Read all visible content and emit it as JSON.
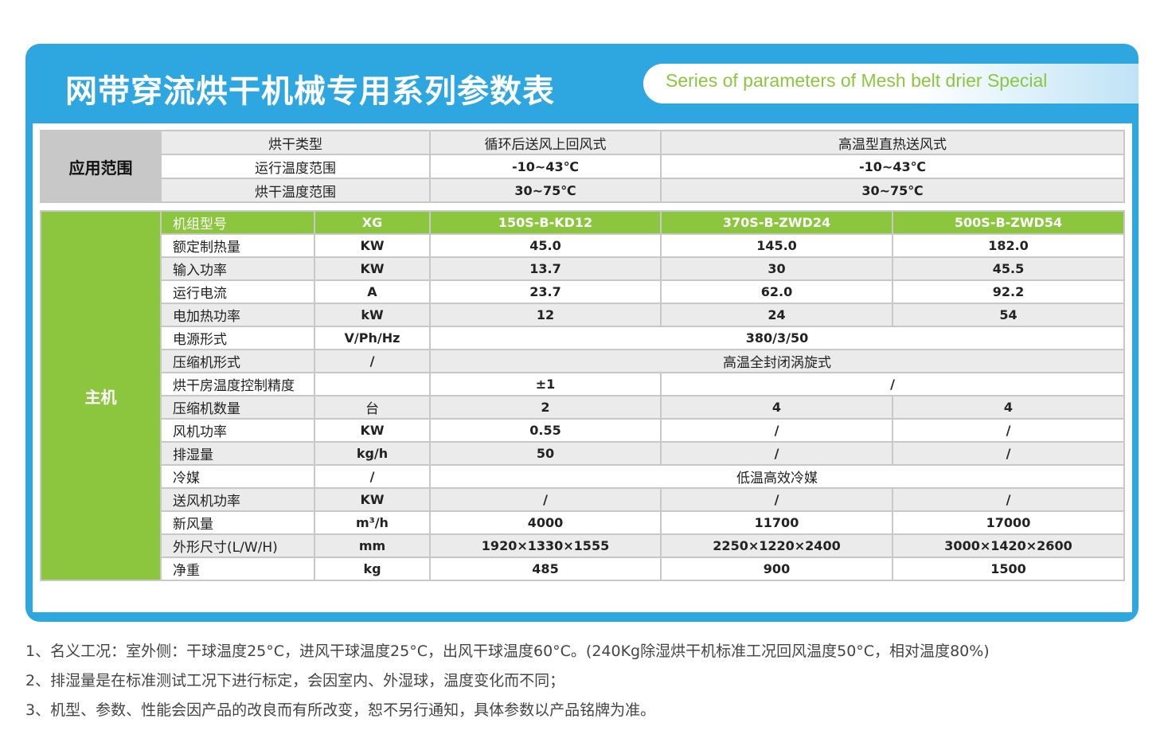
{
  "title_cn": "网带穿流烘干机械专用系列参数表",
  "title_en": "Series of parameters of Mesh belt drier Special",
  "application": {
    "heading": "应用范围",
    "rows": [
      {
        "label": "烘干类型",
        "col1": "循环后送风上回风式",
        "col2": "高温型直热送风式"
      },
      {
        "label": "运行温度范围",
        "col1": "-10~43℃",
        "col2": "-10~43℃"
      },
      {
        "label": "烘干温度范围",
        "col1": "30~75℃",
        "col2": "30~75℃"
      }
    ]
  },
  "main": {
    "heading": "主机",
    "header": {
      "label": "机组型号",
      "unit": "XG",
      "m1": "150S-B-KD12",
      "m2": "370S-B-ZWD24",
      "m3": "500S-B-ZWD54"
    },
    "rows": [
      {
        "label": "额定制热量",
        "unit": "KW",
        "v": [
          "45.0",
          "145.0",
          "182.0"
        ]
      },
      {
        "label": "输入功率",
        "unit": "KW",
        "v": [
          "13.7",
          "30",
          "45.5"
        ]
      },
      {
        "label": "运行电流",
        "unit": "A",
        "v": [
          "23.7",
          "62.0",
          "92.2"
        ]
      },
      {
        "label": "电加热功率",
        "unit": "kW",
        "v": [
          "12",
          "24",
          "54"
        ]
      },
      {
        "label": "电源形式",
        "unit": "V/Ph/Hz",
        "merged": "380/3/50"
      },
      {
        "label": "压缩机形式",
        "unit": "/",
        "merged": "高温全封闭涡旋式"
      },
      {
        "label": "烘干房温度控制精度",
        "unit": "",
        "first": "±1",
        "rest": "/"
      },
      {
        "label": "压缩机数量",
        "unit": "台",
        "v": [
          "2",
          "4",
          "4"
        ]
      },
      {
        "label": "风机功率",
        "unit": "KW",
        "v": [
          "0.55",
          "/",
          "/"
        ]
      },
      {
        "label": "排湿量",
        "unit": "kg/h",
        "v": [
          "50",
          "/",
          "/"
        ]
      },
      {
        "label": "冷媒",
        "unit": "/",
        "merged": "低温高效冷媒"
      },
      {
        "label": "送风机功率",
        "unit": "KW",
        "v": [
          "/",
          "/",
          "/"
        ]
      },
      {
        "label": "新风量",
        "unit": "m³/h",
        "v": [
          "4000",
          "11700",
          "17000"
        ]
      },
      {
        "label": "外形尺寸(L/W/H)",
        "unit": "mm",
        "v": [
          "1920×1330×1555",
          "2250×1220×2400",
          "3000×1420×2600"
        ]
      },
      {
        "label": "净重",
        "unit": "kg",
        "v": [
          "485",
          "900",
          "1500"
        ]
      }
    ]
  },
  "notes": [
    "1、名义工况：室外侧：干球温度25°C，进风干球温度25°C，出风干球温度60°C。(240Kg除湿烘干机标准工况回风温度50°C，相对温度80%)",
    "2、排湿量是在标准测试工况下进行标定，会因室内、外湿球，温度变化而不同；",
    "3、机型、参数、性能会因产品的改良而有所改变，恕不另行通知，具体参数以产品铭牌为准。"
  ],
  "colors": {
    "frame_blue": "#2ea7e0",
    "header_green": "#8cc63f",
    "gray_cell": "#c8c8c8",
    "stripe": "#ebebeb"
  }
}
